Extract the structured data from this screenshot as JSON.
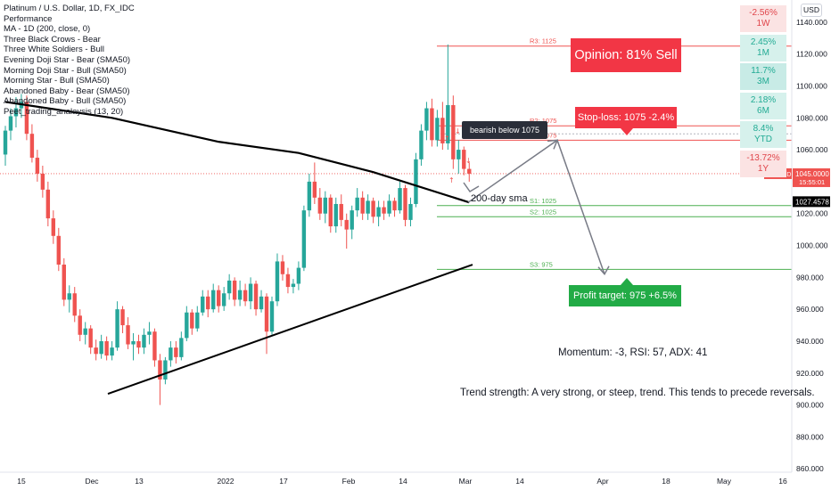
{
  "title": "Platinum / U.S. Dollar, 1D, FX_IDC",
  "legend": [
    "Performance",
    "MA - 1D (200, close, 0)",
    "Three Black Crows - Bear",
    "Three White Soldiers - Bull",
    "Evening Doji Star - Bear (SMA50)",
    "Morning Doji Star - Bull (SMA50)",
    "Morning Star - Bull (SMA50)",
    "Abandoned Baby - Bear (SMA50)",
    "Abandoned Baby - Bull (SMA50)",
    "Peet_trading_analaysis (13, 20)"
  ],
  "currency": "USD",
  "performance": [
    {
      "value": "-2.56%",
      "period": "1W",
      "tone": "neg"
    },
    {
      "value": "2.45%",
      "period": "1M",
      "tone": "pos"
    },
    {
      "value": "11.7%",
      "period": "3M",
      "tone": "pos2"
    },
    {
      "value": "2.18%",
      "period": "6M",
      "tone": "pos"
    },
    {
      "value": "8.4%",
      "period": "YTD",
      "tone": "pos"
    },
    {
      "value": "-13.72%",
      "period": "1Y",
      "tone": "neg"
    }
  ],
  "annotations": {
    "opinion": "Opinion: 81% Sell",
    "stop_loss": "Stop-loss: 1075 -2.4%",
    "profit_target": "Profit target: 975 +6.5%",
    "bearish": "bearish below 1075",
    "sma_label": "200-day sma",
    "momentum": "Momentum: -3, RSI: 57, ADX: 41",
    "trend": "Trend strength: A very strong, or steep, trend. This tends to precede reversals."
  },
  "price_tags": {
    "last": "1045.0000",
    "last_symbol": "XPTUSD",
    "countdown": "15:55:01",
    "sma": "1027.4578"
  },
  "colors": {
    "up": "#26a69a",
    "down": "#ef5350",
    "opinion": "#f23645",
    "profit": "#22ab46",
    "level_red": "#ef5350",
    "level_green": "#4caf50"
  },
  "chart_data": {
    "type": "candlestick",
    "symbol": "Platinum / U.S. Dollar",
    "timeframe": "1D",
    "y_range": [
      860,
      1150
    ],
    "y_ticks": [
      860,
      880,
      900,
      920,
      940,
      960,
      980,
      1000,
      1020,
      1040,
      1060,
      1080,
      1100,
      1120,
      1140
    ],
    "x_labels": [
      "15",
      "Dec",
      "13",
      "2022",
      "17",
      "Feb",
      "14",
      "Mar",
      "14",
      "Apr",
      "18",
      "May",
      "16"
    ],
    "levels": [
      {
        "label": "R3: 1125",
        "value": 1125,
        "kind": "resistance"
      },
      {
        "label": "R2: 1075",
        "value": 1075,
        "kind": "resistance"
      },
      {
        "label": "R1: 1075",
        "value": 1075,
        "kind": "resistance"
      },
      {
        "label": "S1: 1025",
        "value": 1025,
        "kind": "support"
      },
      {
        "label": "S2: 1025",
        "value": 1025,
        "kind": "support"
      },
      {
        "label": "S3: 975",
        "value": 975,
        "kind": "support"
      }
    ],
    "candles": [
      {
        "o": 1057,
        "h": 1075,
        "l": 1050,
        "c": 1072
      },
      {
        "o": 1072,
        "h": 1086,
        "l": 1066,
        "c": 1081
      },
      {
        "o": 1081,
        "h": 1093,
        "l": 1074,
        "c": 1086
      },
      {
        "o": 1086,
        "h": 1095,
        "l": 1080,
        "c": 1090
      },
      {
        "o": 1090,
        "h": 1094,
        "l": 1066,
        "c": 1070
      },
      {
        "o": 1070,
        "h": 1076,
        "l": 1052,
        "c": 1055
      },
      {
        "o": 1055,
        "h": 1060,
        "l": 1040,
        "c": 1045
      },
      {
        "o": 1045,
        "h": 1050,
        "l": 1030,
        "c": 1035
      },
      {
        "o": 1035,
        "h": 1040,
        "l": 1012,
        "c": 1017
      },
      {
        "o": 1017,
        "h": 1022,
        "l": 1001,
        "c": 1006
      },
      {
        "o": 1006,
        "h": 1011,
        "l": 984,
        "c": 988
      },
      {
        "o": 988,
        "h": 992,
        "l": 962,
        "c": 966
      },
      {
        "o": 966,
        "h": 975,
        "l": 958,
        "c": 970
      },
      {
        "o": 970,
        "h": 974,
        "l": 952,
        "c": 956
      },
      {
        "o": 956,
        "h": 960,
        "l": 940,
        "c": 944
      },
      {
        "o": 944,
        "h": 952,
        "l": 938,
        "c": 948
      },
      {
        "o": 948,
        "h": 950,
        "l": 932,
        "c": 936
      },
      {
        "o": 936,
        "h": 941,
        "l": 928,
        "c": 932
      },
      {
        "o": 932,
        "h": 944,
        "l": 929,
        "c": 940
      },
      {
        "o": 940,
        "h": 943,
        "l": 928,
        "c": 931
      },
      {
        "o": 931,
        "h": 940,
        "l": 928,
        "c": 936
      },
      {
        "o": 936,
        "h": 965,
        "l": 934,
        "c": 960
      },
      {
        "o": 960,
        "h": 962,
        "l": 945,
        "c": 950
      },
      {
        "o": 950,
        "h": 955,
        "l": 935,
        "c": 938
      },
      {
        "o": 938,
        "h": 945,
        "l": 928,
        "c": 940
      },
      {
        "o": 940,
        "h": 944,
        "l": 932,
        "c": 936
      },
      {
        "o": 936,
        "h": 948,
        "l": 932,
        "c": 944
      },
      {
        "o": 944,
        "h": 952,
        "l": 938,
        "c": 946
      },
      {
        "o": 946,
        "h": 948,
        "l": 924,
        "c": 928
      },
      {
        "o": 928,
        "h": 932,
        "l": 900,
        "c": 916
      },
      {
        "o": 916,
        "h": 930,
        "l": 913,
        "c": 928
      },
      {
        "o": 928,
        "h": 940,
        "l": 924,
        "c": 936
      },
      {
        "o": 936,
        "h": 940,
        "l": 926,
        "c": 930
      },
      {
        "o": 930,
        "h": 946,
        "l": 928,
        "c": 942
      },
      {
        "o": 942,
        "h": 962,
        "l": 940,
        "c": 958
      },
      {
        "o": 958,
        "h": 960,
        "l": 944,
        "c": 948
      },
      {
        "o": 948,
        "h": 962,
        "l": 946,
        "c": 958
      },
      {
        "o": 958,
        "h": 972,
        "l": 956,
        "c": 968
      },
      {
        "o": 968,
        "h": 972,
        "l": 955,
        "c": 960
      },
      {
        "o": 960,
        "h": 976,
        "l": 958,
        "c": 972
      },
      {
        "o": 972,
        "h": 975,
        "l": 958,
        "c": 962
      },
      {
        "o": 962,
        "h": 974,
        "l": 959,
        "c": 970
      },
      {
        "o": 970,
        "h": 982,
        "l": 966,
        "c": 978
      },
      {
        "o": 978,
        "h": 980,
        "l": 962,
        "c": 966
      },
      {
        "o": 966,
        "h": 978,
        "l": 962,
        "c": 972
      },
      {
        "o": 972,
        "h": 976,
        "l": 962,
        "c": 965
      },
      {
        "o": 965,
        "h": 980,
        "l": 960,
        "c": 976
      },
      {
        "o": 976,
        "h": 978,
        "l": 956,
        "c": 960
      },
      {
        "o": 960,
        "h": 972,
        "l": 958,
        "c": 968
      },
      {
        "o": 968,
        "h": 970,
        "l": 932,
        "c": 946
      },
      {
        "o": 946,
        "h": 968,
        "l": 944,
        "c": 965
      },
      {
        "o": 965,
        "h": 995,
        "l": 962,
        "c": 990
      },
      {
        "o": 990,
        "h": 994,
        "l": 978,
        "c": 982
      },
      {
        "o": 982,
        "h": 986,
        "l": 970,
        "c": 974
      },
      {
        "o": 974,
        "h": 979,
        "l": 970,
        "c": 976
      },
      {
        "o": 976,
        "h": 990,
        "l": 972,
        "c": 986
      },
      {
        "o": 986,
        "h": 1025,
        "l": 984,
        "c": 1022
      },
      {
        "o": 1022,
        "h": 1045,
        "l": 1018,
        "c": 1040
      },
      {
        "o": 1040,
        "h": 1052,
        "l": 1026,
        "c": 1030
      },
      {
        "o": 1030,
        "h": 1036,
        "l": 1016,
        "c": 1020
      },
      {
        "o": 1020,
        "h": 1034,
        "l": 1014,
        "c": 1030
      },
      {
        "o": 1030,
        "h": 1032,
        "l": 1008,
        "c": 1012
      },
      {
        "o": 1012,
        "h": 1030,
        "l": 1008,
        "c": 1026
      },
      {
        "o": 1026,
        "h": 1032,
        "l": 1012,
        "c": 1016
      },
      {
        "o": 1016,
        "h": 1020,
        "l": 998,
        "c": 1010
      },
      {
        "o": 1010,
        "h": 1025,
        "l": 1004,
        "c": 1022
      },
      {
        "o": 1022,
        "h": 1036,
        "l": 1018,
        "c": 1030
      },
      {
        "o": 1030,
        "h": 1034,
        "l": 1016,
        "c": 1020
      },
      {
        "o": 1020,
        "h": 1032,
        "l": 1016,
        "c": 1028
      },
      {
        "o": 1028,
        "h": 1030,
        "l": 1014,
        "c": 1018
      },
      {
        "o": 1018,
        "h": 1028,
        "l": 1012,
        "c": 1024
      },
      {
        "o": 1024,
        "h": 1028,
        "l": 1016,
        "c": 1020
      },
      {
        "o": 1020,
        "h": 1032,
        "l": 1018,
        "c": 1028
      },
      {
        "o": 1028,
        "h": 1030,
        "l": 1018,
        "c": 1022
      },
      {
        "o": 1022,
        "h": 1040,
        "l": 1020,
        "c": 1036
      },
      {
        "o": 1036,
        "h": 1038,
        "l": 1012,
        "c": 1016
      },
      {
        "o": 1016,
        "h": 1030,
        "l": 1012,
        "c": 1026
      },
      {
        "o": 1026,
        "h": 1058,
        "l": 1024,
        "c": 1054
      },
      {
        "o": 1054,
        "h": 1076,
        "l": 1050,
        "c": 1072
      },
      {
        "o": 1072,
        "h": 1090,
        "l": 1066,
        "c": 1086
      },
      {
        "o": 1086,
        "h": 1092,
        "l": 1062,
        "c": 1066
      },
      {
        "o": 1066,
        "h": 1085,
        "l": 1062,
        "c": 1080
      },
      {
        "o": 1080,
        "h": 1090,
        "l": 1060,
        "c": 1064
      },
      {
        "o": 1064,
        "h": 1126,
        "l": 1060,
        "c": 1088
      },
      {
        "o": 1088,
        "h": 1094,
        "l": 1048,
        "c": 1054
      },
      {
        "o": 1054,
        "h": 1066,
        "l": 1045,
        "c": 1060
      },
      {
        "o": 1060,
        "h": 1062,
        "l": 1044,
        "c": 1048
      },
      {
        "o": 1048,
        "h": 1052,
        "l": 1040,
        "c": 1045
      }
    ],
    "sma_200": [
      [
        0,
        1090
      ],
      [
        20,
        1080
      ],
      [
        40,
        1065
      ],
      [
        55,
        1058
      ],
      [
        69,
        1046
      ],
      [
        87,
        1027
      ]
    ],
    "trendlines": [
      {
        "name": "descending",
        "from": [
          0,
          1090
        ],
        "to": [
          87,
          1027
        ]
      },
      {
        "name": "ascending",
        "from": [
          20,
          907
        ],
        "to": [
          87,
          988
        ]
      }
    ],
    "projection": {
      "points": [
        [
          88,
          1027
        ],
        [
          102,
          1066
        ],
        [
          112,
          982
        ]
      ]
    }
  }
}
